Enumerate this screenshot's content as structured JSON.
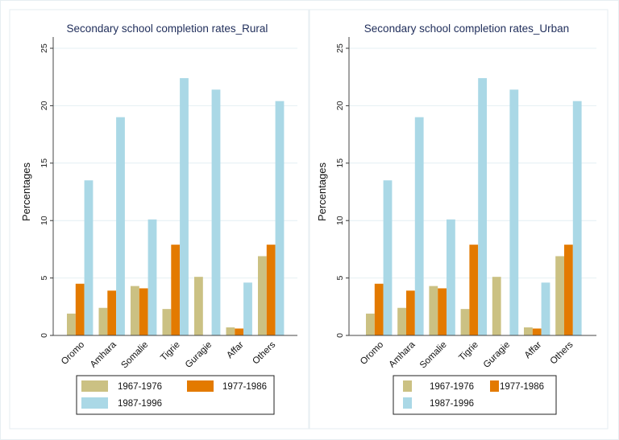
{
  "colors": {
    "1967-1976": "#cbc183",
    "1977-1986": "#e37a00",
    "1987-1996": "#aad8e6"
  },
  "chart_data": [
    {
      "type": "bar",
      "title": "Secondary school completion rates_Rural",
      "ylabel": "Percentages",
      "xlabel": "",
      "ylim": [
        0,
        26
      ],
      "yticks": [
        0,
        5,
        10,
        15,
        20,
        25
      ],
      "grid": true,
      "legend": "bottom",
      "categories": [
        "Oromo",
        "Amhara",
        "Somalie",
        "Tigrie",
        "Guragie",
        "Affar",
        "Others"
      ],
      "series": [
        {
          "name": "1967-1976",
          "values": [
            1.9,
            2.4,
            4.3,
            2.3,
            5.1,
            0.7,
            6.9
          ]
        },
        {
          "name": "1977-1986",
          "values": [
            4.5,
            3.9,
            4.1,
            7.9,
            0,
            0.6,
            7.9
          ]
        },
        {
          "name": "1987-1996",
          "values": [
            13.5,
            19.0,
            10.1,
            22.4,
            21.4,
            4.6,
            20.4
          ]
        }
      ]
    },
    {
      "type": "bar",
      "title": "Secondary school completion rates_Urban",
      "ylabel": "Percentages",
      "xlabel": "",
      "ylim": [
        0,
        26
      ],
      "yticks": [
        0,
        5,
        10,
        15,
        20,
        25
      ],
      "grid": true,
      "legend": "bottom",
      "categories": [
        "Oromo",
        "Amhara",
        "Somalie",
        "Tigrie",
        "Guragie",
        "Affar",
        "Others"
      ],
      "series": [
        {
          "name": "1967-1976",
          "values": [
            1.9,
            2.4,
            4.3,
            2.3,
            5.1,
            0.7,
            6.9
          ]
        },
        {
          "name": "1977-1986",
          "values": [
            4.5,
            3.9,
            4.1,
            7.9,
            0,
            0.6,
            7.9
          ]
        },
        {
          "name": "1987-1996",
          "values": [
            13.5,
            19.0,
            10.1,
            22.4,
            21.4,
            4.6,
            20.4
          ]
        }
      ]
    }
  ]
}
